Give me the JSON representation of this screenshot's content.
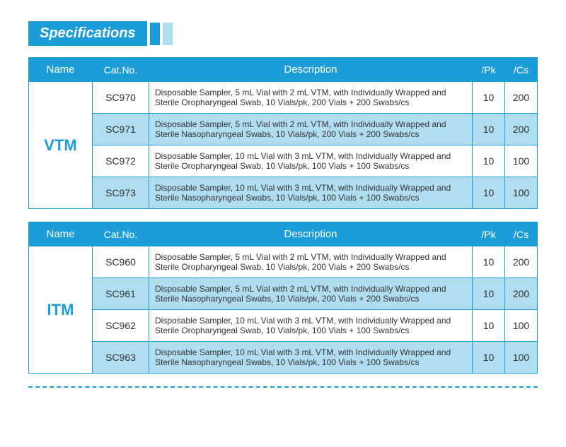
{
  "header": {
    "title": "Specifications"
  },
  "columns": [
    "Name",
    "Cat.No.",
    "Description",
    "/Pk",
    "/Cs"
  ],
  "colors": {
    "primary": "#1d9dd8",
    "light": "#b0ddf0",
    "white": "#ffffff",
    "text": "#333333"
  },
  "tables": [
    {
      "name": "VTM",
      "rows": [
        {
          "cat": "SC970",
          "desc": "Disposable Sampler, 5 mL Vial with 2 mL VTM, with Individually Wrapped and Sterile Oropharyngeal Swab, 10 Vials/pk, 200 Vials + 200 Swabs/cs",
          "pk": "10",
          "cs": "200",
          "bg": "white"
        },
        {
          "cat": "SC971",
          "desc": "Disposable Sampler, 5 mL Vial with 2 mL VTM, with Individually Wrapped and Sterile Nasopharyngeal Swabs, 10 Vials/pk, 200 Vials + 200 Swabs/cs",
          "pk": "10",
          "cs": "200",
          "bg": "light"
        },
        {
          "cat": "SC972",
          "desc": "Disposable Sampler, 10 mL Vial with 3 mL VTM, with Individually Wrapped and Sterile Oropharyngeal Swab, 10 Vials/pk, 100 Vials + 100 Swabs/cs",
          "pk": "10",
          "cs": "100",
          "bg": "white"
        },
        {
          "cat": "SC973",
          "desc": "Disposable Sampler, 10 mL Vial with 3 mL VTM, with Individually Wrapped and Sterile Nasopharyngeal Swabs, 10 Vials/pk, 100 Vials + 100 Swabs/cs",
          "pk": "10",
          "cs": "100",
          "bg": "light"
        }
      ]
    },
    {
      "name": "ITM",
      "rows": [
        {
          "cat": "SC960",
          "desc": "Disposable Sampler, 5 mL Vial with 2 mL VTM, with Individually Wrapped and Sterile Oropharyngeal Swab, 10 Vials/pk, 200 Vials + 200 Swabs/cs",
          "pk": "10",
          "cs": "200",
          "bg": "white"
        },
        {
          "cat": "SC961",
          "desc": "Disposable Sampler, 5 mL Vial with 2 mL VTM, with Individually Wrapped and Sterile Nasopharyngeal Swabs, 10 Vials/pk, 200 Vials + 200 Swabs/cs",
          "pk": "10",
          "cs": "200",
          "bg": "light"
        },
        {
          "cat": "SC962",
          "desc": "Disposable Sampler, 10 mL Vial with 3 mL VTM, with Individually Wrapped and Sterile Oropharyngeal Swab, 10 Vials/pk, 100 Vials + 100 Swabs/cs",
          "pk": "10",
          "cs": "100",
          "bg": "white"
        },
        {
          "cat": "SC963",
          "desc": "Disposable Sampler, 10 mL Vial with 3 mL VTM, with Individually Wrapped and Sterile Nasopharyngeal Swabs, 10 Vials/pk, 100 Vials + 100 Swabs/cs",
          "pk": "10",
          "cs": "100",
          "bg": "light"
        }
      ]
    }
  ]
}
